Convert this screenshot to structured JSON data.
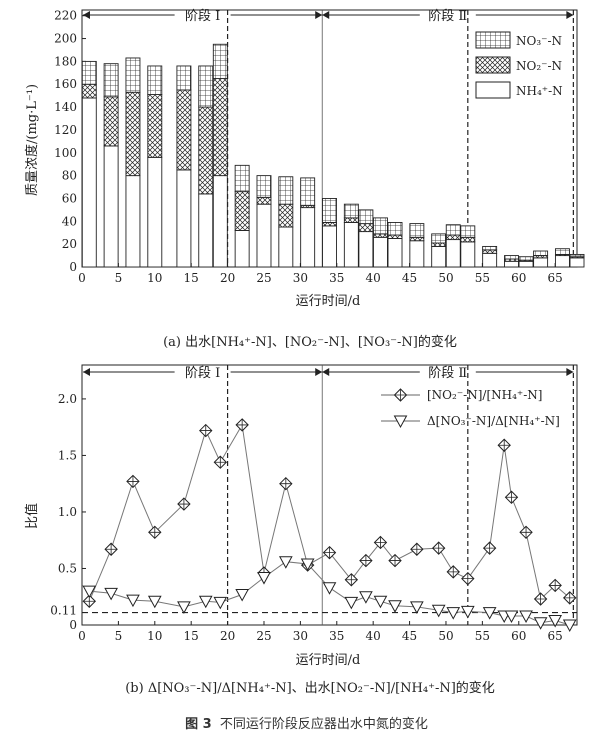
{
  "figure_title": {
    "label": "图 3",
    "text": "不同运行阶段反应器出水中氮的变化"
  },
  "chart_data": [
    {
      "type": "bar",
      "stacked": true,
      "caption": "(a) 出水[NH₄⁺-N]、[NO₂⁻-N]、[NO₃⁻-N]的变化",
      "xlabel": "运行时间/d",
      "ylabel": "质量浓度/(mg·L⁻¹)",
      "xlim": [
        0,
        68
      ],
      "ylim": [
        0,
        225
      ],
      "xticks": [
        0,
        5,
        10,
        15,
        20,
        25,
        30,
        35,
        40,
        45,
        50,
        55,
        60,
        65
      ],
      "yticks": [
        0,
        20,
        40,
        60,
        80,
        100,
        120,
        140,
        160,
        180,
        200,
        220
      ],
      "phase_labels": [
        "阶段 Ⅰ",
        "阶段 Ⅱ"
      ],
      "phase_boundaries": [
        20,
        33,
        53,
        67.5
      ],
      "series": [
        {
          "name": "NH₄⁺-N",
          "pattern": "blank"
        },
        {
          "name": "NO₂⁻-N",
          "pattern": "crosshatch"
        },
        {
          "name": "NO₃⁻-N",
          "pattern": "grid"
        }
      ],
      "bars": [
        {
          "x": 1,
          "nh4": 148,
          "no2": 12,
          "no3": 20
        },
        {
          "x": 4,
          "nh4": 106,
          "no2": 43,
          "no3": 29
        },
        {
          "x": 7,
          "nh4": 80,
          "no2": 73,
          "no3": 30
        },
        {
          "x": 10,
          "nh4": 96,
          "no2": 55,
          "no3": 25
        },
        {
          "x": 14,
          "nh4": 85,
          "no2": 70,
          "no3": 21
        },
        {
          "x": 17,
          "nh4": 64,
          "no2": 76,
          "no3": 36
        },
        {
          "x": 19,
          "nh4": 80,
          "no2": 85,
          "no3": 30
        },
        {
          "x": 22,
          "nh4": 32,
          "no2": 34,
          "no3": 23
        },
        {
          "x": 25,
          "nh4": 55,
          "no2": 6,
          "no3": 19
        },
        {
          "x": 28,
          "nh4": 35,
          "no2": 20,
          "no3": 24
        },
        {
          "x": 31,
          "nh4": 52,
          "no2": 2,
          "no3": 24
        },
        {
          "x": 34,
          "nh4": 36,
          "no2": 3,
          "no3": 21
        },
        {
          "x": 37,
          "nh4": 39,
          "no2": 4,
          "no3": 12
        },
        {
          "x": 39,
          "nh4": 31,
          "no2": 7,
          "no3": 12
        },
        {
          "x": 41,
          "nh4": 26,
          "no2": 3,
          "no3": 14
        },
        {
          "x": 43,
          "nh4": 25,
          "no2": 3,
          "no3": 11
        },
        {
          "x": 46,
          "nh4": 23,
          "no2": 3,
          "no3": 12
        },
        {
          "x": 49,
          "nh4": 18,
          "no2": 3,
          "no3": 8
        },
        {
          "x": 51,
          "nh4": 24,
          "no2": 4,
          "no3": 9
        },
        {
          "x": 53,
          "nh4": 22,
          "no2": 4,
          "no3": 10
        },
        {
          "x": 56,
          "nh4": 12,
          "no2": 3,
          "no3": 3
        },
        {
          "x": 59,
          "nh4": 5,
          "no2": 2,
          "no3": 3
        },
        {
          "x": 61,
          "nh4": 5,
          "no2": 1,
          "no3": 3
        },
        {
          "x": 63,
          "nh4": 8,
          "no2": 2,
          "no3": 4
        },
        {
          "x": 66,
          "nh4": 10,
          "no2": 1,
          "no3": 5
        },
        {
          "x": 68,
          "nh4": 8,
          "no2": 1,
          "no3": 2
        }
      ]
    },
    {
      "type": "line",
      "caption": "(b) Δ[NO₃⁻-N]/Δ[NH₄⁺-N]、出水[NO₂⁻-N]/[NH₄⁺-N]的变化",
      "xlabel": "运行时间/d",
      "ylabel": "比值",
      "xlim": [
        0,
        68
      ],
      "ylim": [
        0,
        2.3
      ],
      "xticks": [
        0,
        5,
        10,
        15,
        20,
        25,
        30,
        35,
        40,
        45,
        50,
        55,
        60,
        65
      ],
      "yticks": [
        0,
        0.5,
        1.0,
        1.5,
        2.0
      ],
      "ytick_labels": [
        "0",
        "0.5",
        "1.0",
        "1.5",
        "2.0"
      ],
      "reference_line": {
        "y": 0.11,
        "label": "0.11"
      },
      "phase_labels": [
        "阶段 Ⅰ",
        "阶段 Ⅱ"
      ],
      "phase_boundaries": [
        20,
        33,
        53,
        67.5
      ],
      "x": [
        1,
        4,
        7,
        10,
        14,
        17,
        19,
        22,
        25,
        28,
        31,
        34,
        37,
        39,
        41,
        43,
        46,
        49,
        51,
        53,
        56,
        58,
        59,
        61,
        63,
        65,
        67
      ],
      "series": [
        {
          "name": "[NO₂⁻-N]/[NH₄⁺-N]",
          "marker": "diamond",
          "values": [
            0.21,
            0.67,
            1.27,
            0.82,
            1.07,
            1.72,
            1.44,
            1.77,
            0.46,
            1.25,
            0.53,
            0.64,
            0.4,
            0.57,
            0.73,
            0.57,
            0.67,
            0.68,
            0.47,
            0.41,
            0.68,
            1.59,
            1.13,
            0.82,
            0.23,
            0.35,
            0.24
          ]
        },
        {
          "name": "Δ[NO₃⁻-N]/Δ[NH₄⁺-N]",
          "marker": "triangle",
          "values": [
            0.3,
            0.28,
            0.22,
            0.21,
            0.16,
            0.21,
            0.2,
            0.27,
            0.42,
            0.56,
            0.54,
            0.33,
            0.2,
            0.25,
            0.21,
            0.17,
            0.16,
            0.13,
            0.11,
            0.12,
            0.11,
            0.08,
            0.08,
            0.08,
            0.02,
            0.04,
            0.0
          ]
        }
      ]
    }
  ]
}
